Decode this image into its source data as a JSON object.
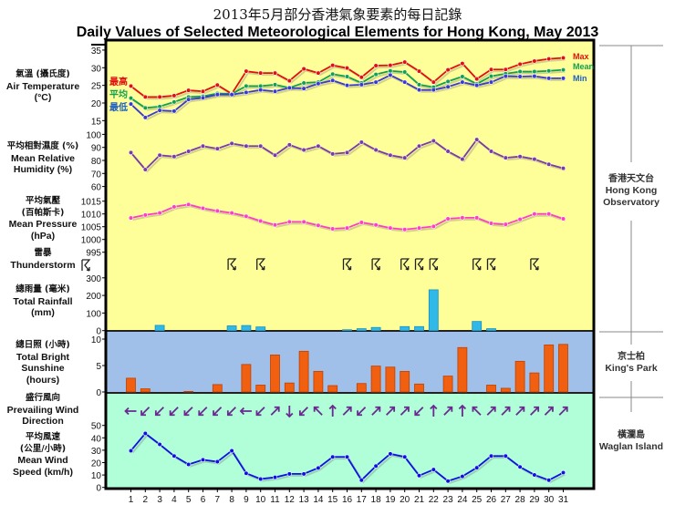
{
  "title_zh": "2013年5月部分香港氣象要素的每日記錄",
  "title_en": "Daily Values of Selected Meteorological Elements for Hong Kong, May 2013",
  "labels": {
    "temperature": {
      "zh": "氣溫 (攝氏度)",
      "en1": "Air Temperature",
      "en2": "(°C)"
    },
    "humidity": {
      "zh": "平均相對濕度 (%)",
      "en1": "Mean Relative",
      "en2": "Humidity (%)"
    },
    "pressure": {
      "zh1": "平均氣壓",
      "zh2": "(百帕斯卡)",
      "en1": "Mean Pressure",
      "en2": "(hPa)"
    },
    "thunderstorm": {
      "zh": "雷暴",
      "en": "Thunderstorm"
    },
    "rainfall": {
      "zh": "總雨量 (毫米)",
      "en1": "Total Rainfall",
      "en2": "(mm)"
    },
    "sunshine": {
      "zh": "總日照 (小時)",
      "en1": "Total Bright",
      "en2": "Sunshine",
      "en3": "(hours)"
    },
    "wind_dir": {
      "zh": "盛行風向",
      "en1": "Prevailing Wind",
      "en2": "Direction"
    },
    "wind_speed": {
      "zh1": "平均風速",
      "zh2": "(公里/小時)",
      "en1": "Mean Wind",
      "en2": "Speed (km/h)"
    }
  },
  "legend": {
    "max_zh": "最高",
    "mean_zh": "平均",
    "min_zh": "最低",
    "max": "Max",
    "mean": "Mean",
    "min": "Min"
  },
  "stations": {
    "hko": {
      "zh": "香港天文台",
      "en1": "Hong Kong",
      "en2": "Observatory"
    },
    "kp": {
      "zh": "京士柏",
      "en": "King's Park"
    },
    "wgl": {
      "zh": "橫瀾島",
      "en": "Waglan Island"
    }
  },
  "colors": {
    "max": "#e01010",
    "mean": "#10a050",
    "min": "#3a3ad0",
    "humidity": "#7a3aa8",
    "pressure": "#ff3ec8",
    "rain": "#30b8e8",
    "sun": "#f06010",
    "wind": "#1010e0",
    "arrow": "#6a2a90",
    "panel_top": "#ffff99",
    "panel_mid": "#a0c0ea",
    "panel_bot": "#b0ffd8"
  },
  "chart_data": {
    "type": "line",
    "x": [
      1,
      2,
      3,
      4,
      5,
      6,
      7,
      8,
      9,
      10,
      11,
      12,
      13,
      14,
      15,
      16,
      17,
      18,
      19,
      20,
      21,
      22,
      23,
      24,
      25,
      26,
      27,
      28,
      29,
      30,
      31
    ],
    "temperature": {
      "ticks": [
        35,
        30,
        25,
        20,
        15
      ],
      "max": [
        24.8,
        21.7,
        21.7,
        22.1,
        23.6,
        23.3,
        25.1,
        22.6,
        29.0,
        28.5,
        28.5,
        26.3,
        29.7,
        28.5,
        30.7,
        29.9,
        27.3,
        30.6,
        30.7,
        31.6,
        29.0,
        25.9,
        29.4,
        31.2,
        26.8,
        29.5,
        29.5,
        31.0,
        31.9,
        32.5,
        32.8
      ],
      "mean": [
        21.4,
        18.6,
        19.0,
        20.3,
        21.7,
        21.9,
        22.7,
        22.6,
        24.8,
        24.8,
        25.2,
        24.3,
        25.7,
        25.9,
        28.2,
        27.5,
        25.7,
        28.1,
        29.1,
        28.8,
        25.2,
        24.5,
        26.1,
        27.5,
        25.4,
        27.6,
        28.3,
        28.9,
        28.9,
        29.1,
        29.4
      ],
      "min": [
        19.7,
        15.9,
        17.9,
        17.7,
        21.0,
        21.5,
        22.4,
        22.4,
        23.0,
        23.7,
        23.3,
        24.3,
        24.1,
        25.5,
        26.4,
        25.0,
        25.2,
        25.9,
        27.9,
        25.9,
        23.7,
        23.7,
        24.6,
        25.9,
        25.0,
        25.9,
        27.6,
        27.5,
        27.6,
        27.0,
        27.0
      ]
    },
    "humidity": {
      "ticks": [
        100,
        90,
        80,
        70,
        60
      ],
      "values": [
        86,
        73,
        84,
        83,
        87,
        91,
        89,
        93,
        91,
        91,
        84,
        92,
        88,
        91,
        85,
        86,
        94,
        88,
        84,
        82,
        91,
        95,
        87,
        81,
        96,
        87,
        82,
        83,
        81,
        77,
        74
      ]
    },
    "pressure": {
      "ticks": [
        1015,
        1010,
        1005,
        1000,
        995
      ],
      "values": [
        1008.4,
        1009.6,
        1010.4,
        1012.8,
        1013.7,
        1012.2,
        1011.2,
        1010.4,
        1009.1,
        1007.2,
        1005.7,
        1006.9,
        1006.9,
        1005.5,
        1004.2,
        1004.5,
        1006.7,
        1005.7,
        1004.5,
        1003.9,
        1004.5,
        1005.1,
        1008.1,
        1008.5,
        1008.5,
        1006.3,
        1005.9,
        1007.9,
        1010.0,
        1010.0,
        1008.1
      ]
    },
    "thunderstorm_days": [
      8,
      10,
      16,
      18,
      20,
      21,
      22,
      25,
      26,
      29
    ],
    "rainfall": {
      "ticks": [
        300,
        200,
        100,
        0
      ],
      "values": [
        0,
        0,
        30,
        0,
        0,
        0,
        0,
        27,
        29,
        21,
        0,
        0,
        0,
        0,
        0,
        5,
        11,
        18,
        0,
        23,
        23,
        232,
        0,
        0,
        52,
        11,
        0,
        0,
        0,
        0,
        0
      ]
    },
    "sunshine": {
      "ticks": [
        10,
        5,
        0
      ],
      "values": [
        2.6,
        0.6,
        0,
        0,
        0.1,
        0,
        1.4,
        0,
        5.2,
        1.3,
        7.0,
        1.7,
        7.7,
        3.9,
        1.2,
        0,
        1.6,
        4.9,
        4.7,
        3.9,
        1.5,
        0,
        3.0,
        8.4,
        0,
        1.3,
        0.7,
        5.8,
        3.6,
        8.9,
        9.0
      ]
    },
    "wind_direction": [
      "E",
      "NE",
      "NE",
      "NE",
      "NE",
      "NE",
      "NE",
      "NE",
      "E",
      "NE",
      "SW",
      "N",
      "NE",
      "SE",
      "S",
      "SW",
      "NE",
      "SW",
      "SW",
      "SW",
      "NE",
      "S",
      "SW",
      "S",
      "SE",
      "SW",
      "SW",
      "SW",
      "SW",
      "SW",
      "SW"
    ],
    "wind_speed": {
      "ticks": [
        50,
        40,
        30,
        20,
        10,
        0
      ],
      "values": [
        29.6,
        43.5,
        34.7,
        25.3,
        18.5,
        22.3,
        20.7,
        29.6,
        11.4,
        6.8,
        8.1,
        10.9,
        10.9,
        15.7,
        24.6,
        24.6,
        5.8,
        17.2,
        27.1,
        24.6,
        9.5,
        14.4,
        5.1,
        8.9,
        15.9,
        25.3,
        25.3,
        16.5,
        10.1,
        5.8,
        11.9
      ]
    }
  }
}
